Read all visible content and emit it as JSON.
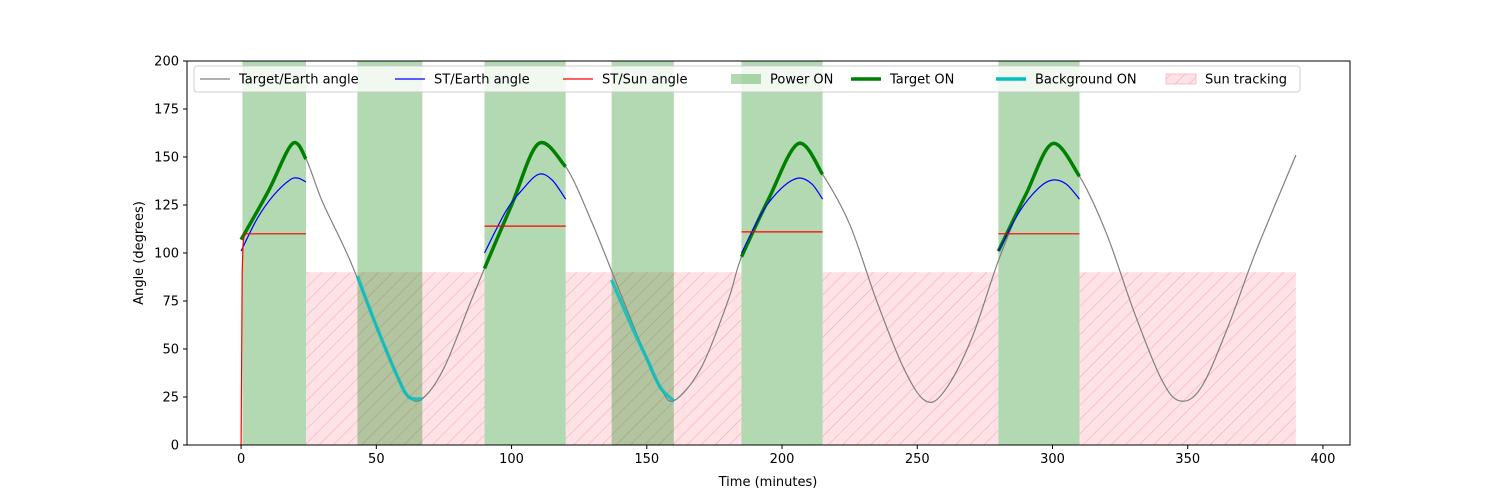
{
  "chart_data": {
    "type": "line",
    "title": "",
    "xlabel": "Time (minutes)",
    "ylabel": "Angle (degrees)",
    "xlim": [
      -20,
      410
    ],
    "ylim": [
      0,
      200
    ],
    "xticks": [
      0,
      50,
      100,
      150,
      200,
      250,
      300,
      350,
      400
    ],
    "yticks": [
      0,
      25,
      50,
      75,
      100,
      125,
      150,
      175,
      200
    ],
    "legend_position": "top",
    "grid": false,
    "colors": {
      "target_earth": "#808080",
      "st_earth": "#0000ff",
      "st_sun": "#ff0000",
      "power_on": "#008000",
      "target_on": "#008000",
      "background_on": "#00bfbf",
      "sun_tracking": "#ffb6c1"
    },
    "legend": [
      {
        "key": "target_earth",
        "label": "Target/Earth angle",
        "style": "line"
      },
      {
        "key": "st_earth",
        "label": "ST/Earth angle",
        "style": "line"
      },
      {
        "key": "st_sun",
        "label": "ST/Sun angle",
        "style": "line"
      },
      {
        "key": "power_on",
        "label": "Power ON",
        "style": "patch"
      },
      {
        "key": "target_on",
        "label": "Target ON",
        "style": "thick"
      },
      {
        "key": "background_on",
        "label": "Background ON",
        "style": "thick"
      },
      {
        "key": "sun_tracking",
        "label": "Sun tracking",
        "style": "hatch"
      }
    ],
    "series": {
      "target_earth": [
        [
          0,
          107
        ],
        [
          10,
          132
        ],
        [
          19,
          157
        ],
        [
          24,
          149
        ],
        [
          30,
          127
        ],
        [
          40,
          97
        ],
        [
          50,
          62
        ],
        [
          58,
          35
        ],
        [
          62,
          25
        ],
        [
          67,
          24
        ],
        [
          75,
          40
        ],
        [
          85,
          75
        ],
        [
          90,
          92
        ],
        [
          100,
          125
        ],
        [
          110,
          157
        ],
        [
          120,
          145
        ],
        [
          130,
          115
        ],
        [
          140,
          80
        ],
        [
          150,
          45
        ],
        [
          155,
          30
        ],
        [
          160,
          23
        ],
        [
          170,
          40
        ],
        [
          180,
          75
        ],
        [
          185,
          98
        ],
        [
          195,
          128
        ],
        [
          206,
          157
        ],
        [
          215,
          141
        ],
        [
          225,
          115
        ],
        [
          235,
          75
        ],
        [
          245,
          40
        ],
        [
          253,
          23
        ],
        [
          260,
          28
        ],
        [
          270,
          55
        ],
        [
          280,
          96
        ],
        [
          290,
          130
        ],
        [
          300,
          157
        ],
        [
          310,
          140
        ],
        [
          320,
          110
        ],
        [
          330,
          70
        ],
        [
          340,
          35
        ],
        [
          347,
          23
        ],
        [
          355,
          30
        ],
        [
          365,
          62
        ],
        [
          375,
          100
        ],
        [
          390,
          151
        ]
      ],
      "st_earth": [
        [
          [
            0,
            101
          ],
          [
            6,
            118
          ],
          [
            12,
            130
          ],
          [
            18,
            138
          ],
          [
            21,
            139
          ],
          [
            24,
            137
          ]
        ],
        [
          [
            90,
            100
          ],
          [
            98,
            122
          ],
          [
            104,
            133
          ],
          [
            110,
            141
          ],
          [
            115,
            138
          ],
          [
            120,
            128
          ]
        ],
        [
          [
            185,
            100
          ],
          [
            193,
            122
          ],
          [
            200,
            134
          ],
          [
            206,
            139
          ],
          [
            211,
            136
          ],
          [
            215,
            128
          ]
        ],
        [
          [
            280,
            101
          ],
          [
            288,
            122
          ],
          [
            295,
            134
          ],
          [
            300,
            138
          ],
          [
            305,
            136
          ],
          [
            310,
            128
          ]
        ]
      ],
      "st_sun": [
        [
          [
            0,
            0
          ],
          [
            0.4,
            90
          ],
          [
            0.7,
            104
          ],
          [
            1.2,
            110
          ],
          [
            24,
            110
          ]
        ],
        [
          [
            90,
            114
          ],
          [
            120,
            114
          ]
        ],
        [
          [
            185,
            111
          ],
          [
            215,
            111
          ]
        ],
        [
          [
            280,
            110
          ],
          [
            310,
            110
          ]
        ]
      ],
      "target_on": [
        [
          [
            0,
            107
          ],
          [
            10,
            132
          ],
          [
            19,
            157
          ],
          [
            24,
            149
          ]
        ],
        [
          [
            90,
            92
          ],
          [
            100,
            125
          ],
          [
            110,
            157
          ],
          [
            120,
            145
          ]
        ],
        [
          [
            185,
            98
          ],
          [
            195,
            128
          ],
          [
            206,
            157
          ],
          [
            215,
            141
          ]
        ],
        [
          [
            280,
            101
          ],
          [
            290,
            130
          ],
          [
            300,
            157
          ],
          [
            310,
            140
          ]
        ]
      ],
      "background_on": [
        [
          [
            43,
            88
          ],
          [
            50,
            62
          ],
          [
            58,
            35
          ],
          [
            62,
            25
          ],
          [
            67,
            24
          ]
        ],
        [
          [
            137,
            86
          ],
          [
            145,
            60
          ],
          [
            150,
            45
          ],
          [
            155,
            30
          ],
          [
            160,
            23
          ]
        ]
      ],
      "power_on": [
        [
          0.5,
          24
        ],
        [
          43,
          67
        ],
        [
          90,
          120
        ],
        [
          137,
          160
        ],
        [
          185,
          215
        ],
        [
          280,
          310
        ]
      ],
      "sun_tracking": [
        [
          24,
          90,
          90
        ],
        [
          120,
          185,
          90
        ],
        [
          215,
          280,
          90
        ],
        [
          310,
          390,
          90
        ]
      ]
    }
  }
}
